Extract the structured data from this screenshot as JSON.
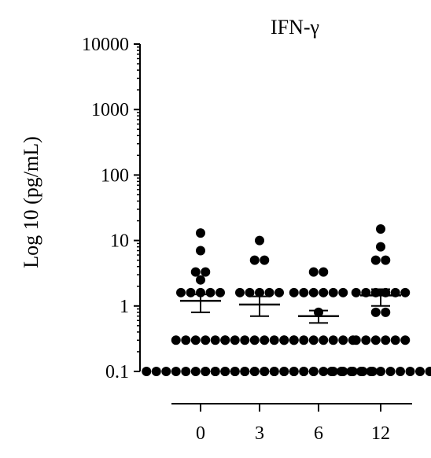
{
  "chart_data": {
    "type": "scatter",
    "title": "IFN-γ",
    "ylabel": "Log 10 (pg/mL)",
    "xlabel": "",
    "y_scale": "log",
    "ylim": [
      0.1,
      10000
    ],
    "y_ticks": [
      "0.1",
      "1",
      "10",
      "100",
      "1000",
      "10000"
    ],
    "categories": [
      "0",
      "3",
      "6",
      "12"
    ],
    "grid": false,
    "legend": "none",
    "marker_color": "#000000",
    "groups": [
      {
        "category": "0",
        "mean": 1.2,
        "sem_low": 0.8,
        "sem_high": 1.5,
        "points": [
          13,
          7,
          3.3,
          2.5,
          3.3,
          1.6,
          1.6,
          1.6,
          1.6,
          1.6,
          0.3,
          0.3,
          0.3,
          0.3,
          0.3,
          0.3,
          0.1,
          0.1,
          0.1,
          0.1,
          0.1,
          0.1,
          0.1,
          0.1,
          0.1,
          0.1,
          0.1,
          0.1
        ]
      },
      {
        "category": "3",
        "mean": 1.05,
        "sem_low": 0.7,
        "sem_high": 1.4,
        "points": [
          10,
          5,
          5,
          1.6,
          1.6,
          1.6,
          1.6,
          1.6,
          0.3,
          0.3,
          0.3,
          0.3,
          0.3,
          0.3,
          0.3,
          0.3,
          0.1,
          0.1,
          0.1,
          0.1,
          0.1,
          0.1,
          0.1,
          0.1,
          0.1,
          0.1,
          0.1,
          0.1
        ]
      },
      {
        "category": "6",
        "mean": 0.7,
        "sem_low": 0.55,
        "sem_high": 0.85,
        "points": [
          3.3,
          3.3,
          1.6,
          1.6,
          1.6,
          1.6,
          1.6,
          1.6,
          0.8,
          0.3,
          0.3,
          0.3,
          0.3,
          0.3,
          0.3,
          0.3,
          0.3,
          0.1,
          0.1,
          0.1,
          0.1,
          0.1,
          0.1,
          0.1,
          0.1,
          0.1,
          0.1,
          0.1,
          0.1
        ]
      },
      {
        "category": "12",
        "mean": 1.45,
        "sem_low": 1.0,
        "sem_high": 1.8,
        "points": [
          15,
          8,
          5,
          5,
          1.6,
          1.6,
          1.6,
          1.6,
          1.6,
          1.6,
          0.8,
          0.8,
          0.3,
          0.3,
          0.3,
          0.3,
          0.3,
          0.3,
          0.1,
          0.1,
          0.1,
          0.1,
          0.1,
          0.1,
          0.1,
          0.1,
          0.1,
          0.1,
          0.1
        ]
      }
    ]
  }
}
